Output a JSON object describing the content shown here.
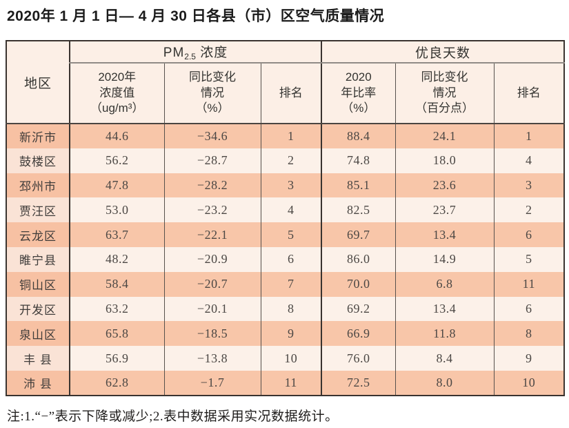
{
  "title": "2020年 1 月 1 日— 4 月 30 日各县（市）区空气质量情况",
  "table": {
    "region_header": "地区",
    "pm25_group": {
      "prefix": "PM",
      "sub": "2.5",
      "suffix": " 浓度"
    },
    "good_days_group": "优良天数",
    "sub_headers": {
      "pm_value": "2020年\n浓度值\n（ug/m³）",
      "pm_change": "同比变化\n情况\n（%）",
      "pm_rank": "排名",
      "good_rate": "2020\n年比率\n（%）",
      "good_change": "同比变化\n情况\n（百分点）",
      "good_rank": "排名"
    },
    "rows": [
      {
        "region": "新沂市",
        "pm_value": "44.6",
        "pm_change": "−34.6",
        "pm_rank": "1",
        "good_rate": "88.4",
        "good_change": "24.1",
        "good_rank": "1"
      },
      {
        "region": "鼓楼区",
        "pm_value": "56.2",
        "pm_change": "−28.7",
        "pm_rank": "2",
        "good_rate": "74.8",
        "good_change": "18.0",
        "good_rank": "4"
      },
      {
        "region": "邳州市",
        "pm_value": "47.8",
        "pm_change": "−28.2",
        "pm_rank": "3",
        "good_rate": "85.1",
        "good_change": "23.6",
        "good_rank": "3"
      },
      {
        "region": "贾汪区",
        "pm_value": "53.0",
        "pm_change": "−23.2",
        "pm_rank": "4",
        "good_rate": "82.5",
        "good_change": "23.7",
        "good_rank": "2"
      },
      {
        "region": "云龙区",
        "pm_value": "63.7",
        "pm_change": "−22.1",
        "pm_rank": "5",
        "good_rate": "69.7",
        "good_change": "13.4",
        "good_rank": "6"
      },
      {
        "region": "睢宁县",
        "pm_value": "48.2",
        "pm_change": "−20.9",
        "pm_rank": "6",
        "good_rate": "86.0",
        "good_change": "14.9",
        "good_rank": "5"
      },
      {
        "region": "铜山区",
        "pm_value": "58.4",
        "pm_change": "−20.7",
        "pm_rank": "7",
        "good_rate": "70.0",
        "good_change": "6.8",
        "good_rank": "11"
      },
      {
        "region": "开发区",
        "pm_value": "63.2",
        "pm_change": "−20.1",
        "pm_rank": "8",
        "good_rate": "69.2",
        "good_change": "13.4",
        "good_rank": "6"
      },
      {
        "region": "泉山区",
        "pm_value": "65.8",
        "pm_change": "−18.5",
        "pm_rank": "9",
        "good_rate": "66.9",
        "good_change": "11.8",
        "good_rank": "8"
      },
      {
        "region": "丰 县",
        "pm_value": "56.9",
        "pm_change": "−13.8",
        "pm_rank": "10",
        "good_rate": "76.0",
        "good_change": "8.4",
        "good_rank": "9"
      },
      {
        "region": "沛 县",
        "pm_value": "62.8",
        "pm_change": "−1.7",
        "pm_rank": "11",
        "good_rate": "72.5",
        "good_change": "8.0",
        "good_rank": "10"
      }
    ]
  },
  "footnote": "注:1.“−”表示下降或减少;2.表中数据采用实况数据统计。",
  "colors": {
    "row_odd": "#f8c6a9",
    "row_even": "#fcf1e9",
    "region_odd": "#f7c1a3",
    "region_even": "#fae3d6",
    "header_bg": "#fcefe6",
    "border_dark": "#39332f",
    "border_gray": "#908b86"
  }
}
